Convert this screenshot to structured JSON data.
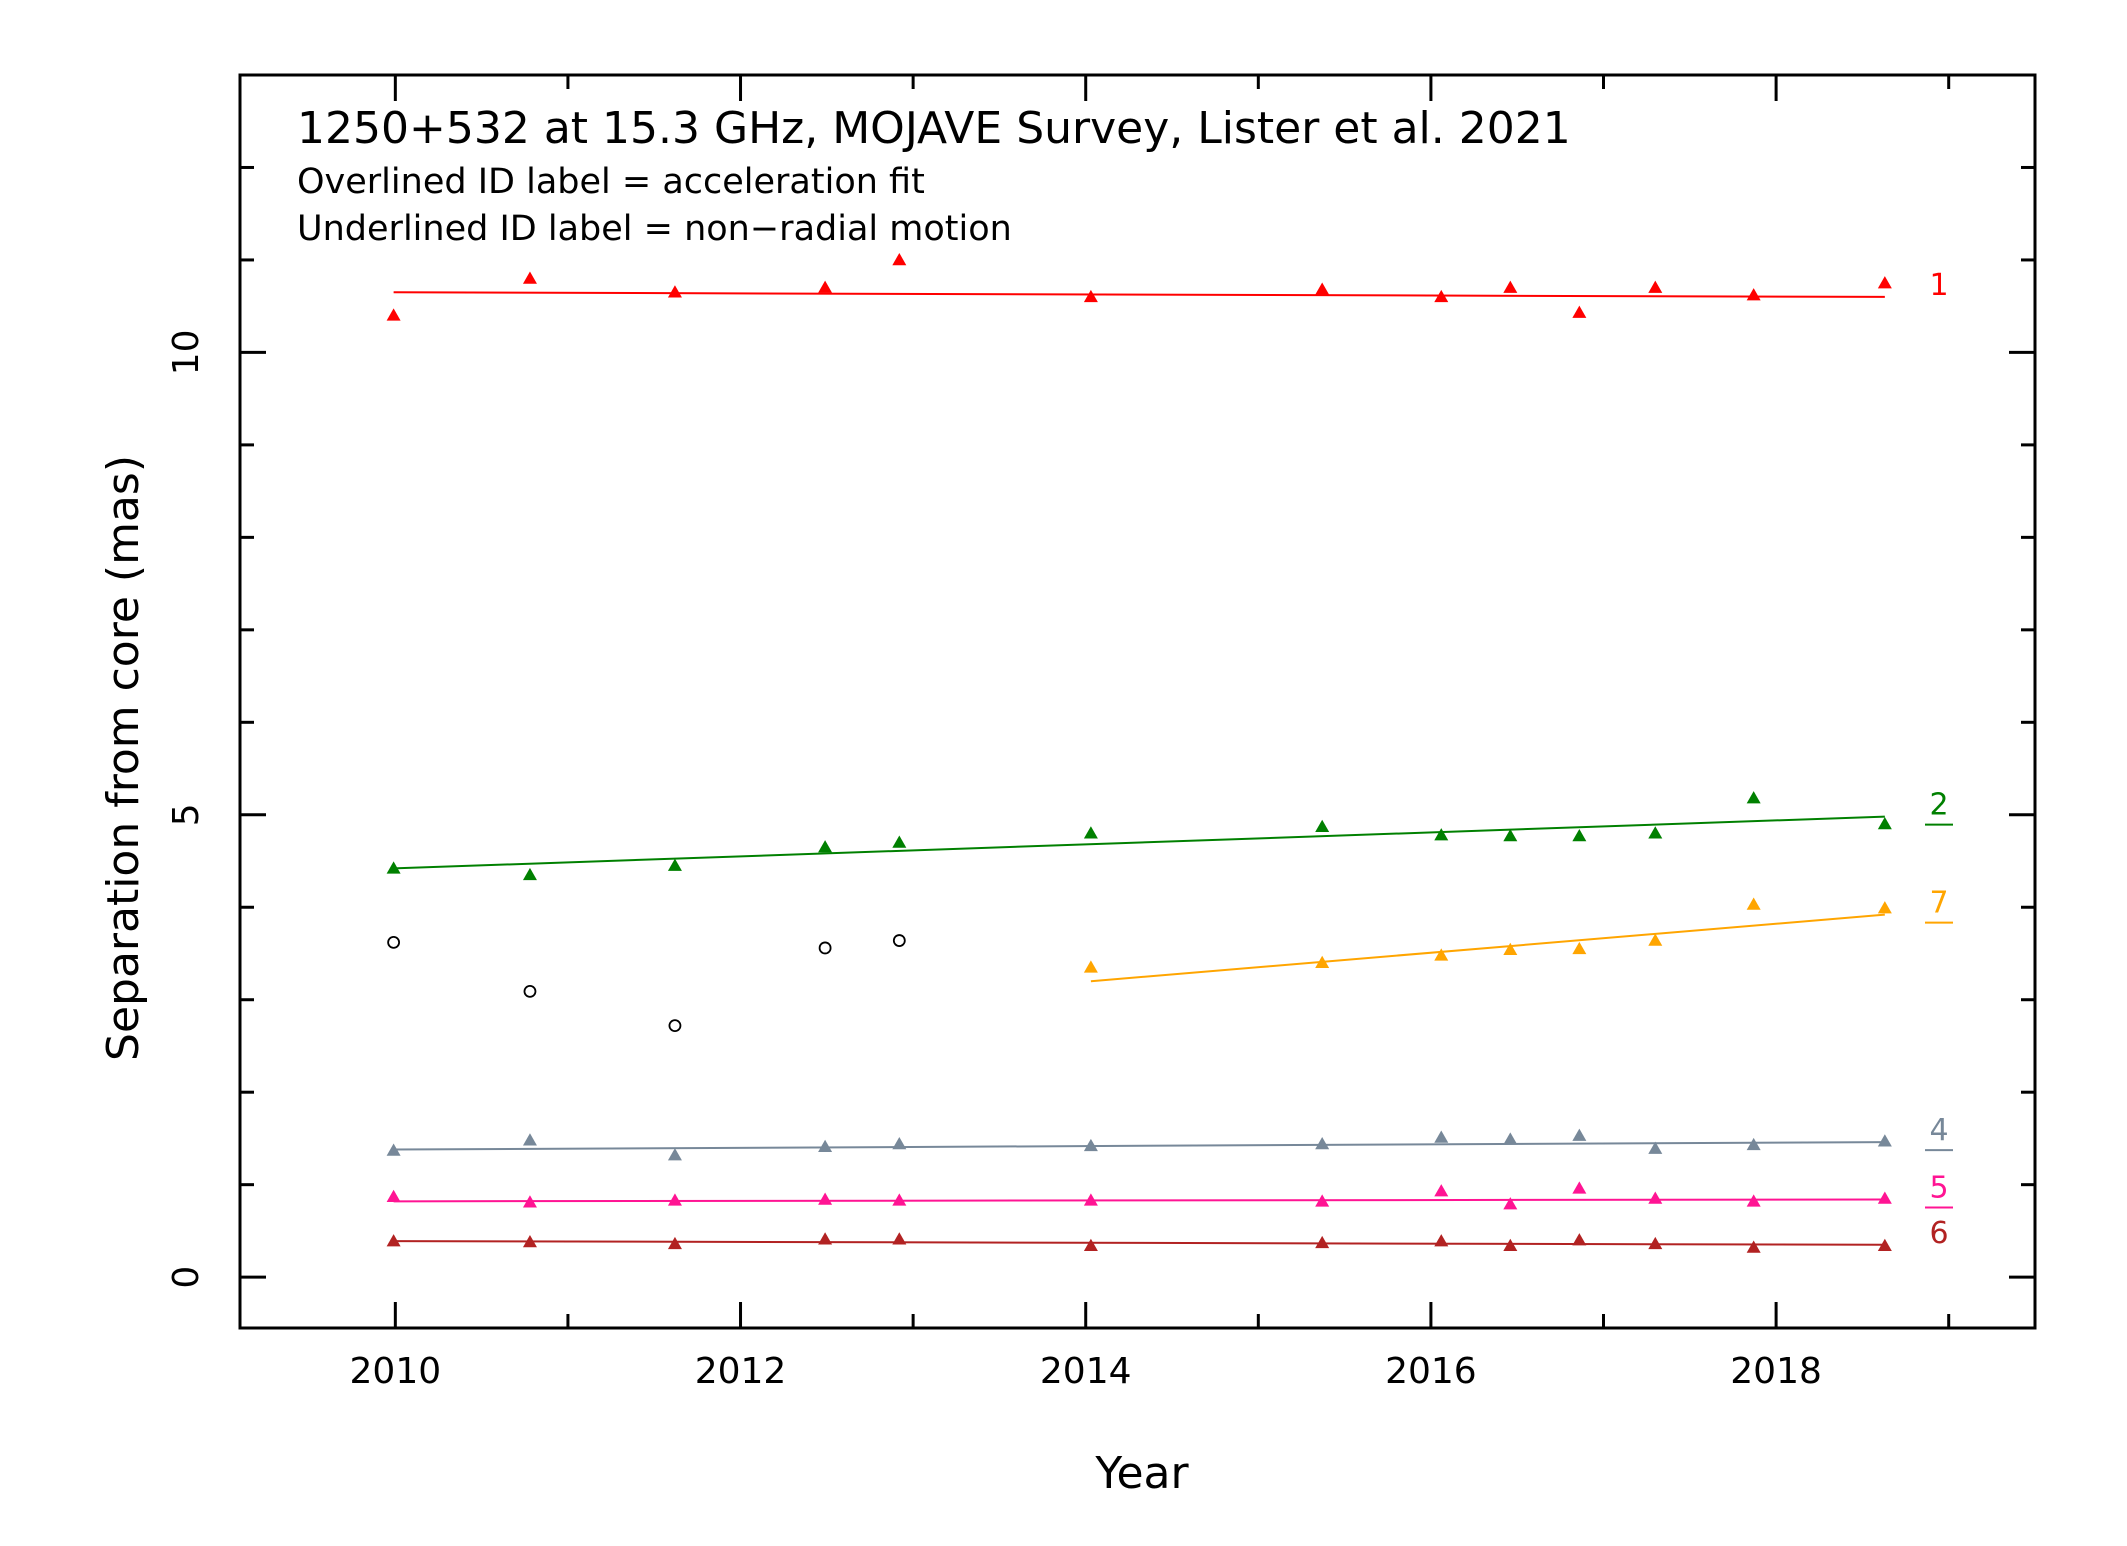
{
  "chart_data": {
    "type": "scatter",
    "title": "1250+532 at 15.3 GHz, MOJAVE Survey, Lister et al. 2021",
    "subtitle_lines": [
      "Overlined ID label = acceleration fit",
      "Underlined ID label = non−radial motion"
    ],
    "xlabel": "Year",
    "ylabel": "Separation from core (mas)",
    "xlim": [
      2009.1,
      2019.5
    ],
    "ylim": [
      -0.55,
      13.0
    ],
    "x_ticks": [
      2010,
      2012,
      2014,
      2016,
      2018
    ],
    "x_tick_labels": [
      "2010",
      "2012",
      "2014",
      "2016",
      "2018"
    ],
    "y_ticks": [
      0,
      5,
      10
    ],
    "y_tick_labels": [
      "0",
      "5",
      "10"
    ],
    "grid": false,
    "components": [
      {
        "id": "1",
        "color": "#ff0000",
        "underline": false,
        "overline": false,
        "x": [
          2009.99,
          2010.78,
          2011.62,
          2012.49,
          2012.92,
          2014.03,
          2015.37,
          2016.06,
          2016.46,
          2016.86,
          2017.3,
          2017.87,
          2018.63
        ],
        "y": [
          10.4,
          10.8,
          10.65,
          10.7,
          11.0,
          10.6,
          10.68,
          10.6,
          10.7,
          10.43,
          10.7,
          10.62,
          10.75
        ],
        "fit": {
          "x": [
            2009.99,
            2018.63
          ],
          "y": [
            10.65,
            10.6
          ]
        }
      },
      {
        "id": "2",
        "color": "#008000",
        "underline": true,
        "overline": false,
        "x": [
          2009.99,
          2010.78,
          2011.62,
          2012.49,
          2012.92,
          2014.03,
          2015.37,
          2016.06,
          2016.46,
          2016.86,
          2017.3,
          2017.87,
          2018.63
        ],
        "y": [
          4.42,
          4.35,
          4.45,
          4.65,
          4.7,
          4.8,
          4.87,
          4.78,
          4.77,
          4.77,
          4.8,
          5.18,
          4.9
        ],
        "fit": {
          "x": [
            2009.99,
            2018.63
          ],
          "y": [
            4.42,
            4.98
          ]
        }
      },
      {
        "id": "7",
        "color": "#ffa500",
        "underline": true,
        "overline": false,
        "x": [
          2014.03,
          2015.37,
          2016.06,
          2016.46,
          2016.86,
          2017.3,
          2017.87,
          2018.63
        ],
        "y": [
          3.35,
          3.4,
          3.48,
          3.54,
          3.55,
          3.64,
          4.03,
          3.99
        ],
        "fit": {
          "x": [
            2014.03,
            2018.63
          ],
          "y": [
            3.2,
            3.92
          ]
        }
      },
      {
        "id": "4",
        "color": "#778899",
        "underline": true,
        "overline": false,
        "x": [
          2009.99,
          2010.78,
          2011.62,
          2012.49,
          2012.92,
          2014.03,
          2015.37,
          2016.06,
          2016.46,
          2016.86,
          2017.3,
          2017.87,
          2018.63
        ],
        "y": [
          1.37,
          1.48,
          1.32,
          1.41,
          1.44,
          1.42,
          1.44,
          1.51,
          1.49,
          1.53,
          1.39,
          1.43,
          1.47
        ],
        "fit": {
          "x": [
            2009.99,
            2018.63
          ],
          "y": [
            1.38,
            1.46
          ]
        }
      },
      {
        "id": "5",
        "color": "#ff1493",
        "underline": true,
        "overline": false,
        "x": [
          2009.99,
          2010.78,
          2011.62,
          2012.49,
          2012.92,
          2014.03,
          2015.37,
          2016.06,
          2016.46,
          2016.86,
          2017.3,
          2017.87,
          2018.63
        ],
        "y": [
          0.87,
          0.81,
          0.83,
          0.84,
          0.83,
          0.83,
          0.82,
          0.93,
          0.79,
          0.96,
          0.85,
          0.82,
          0.85
        ],
        "fit": {
          "x": [
            2009.99,
            2018.63
          ],
          "y": [
            0.82,
            0.84
          ]
        }
      },
      {
        "id": "6",
        "color": "#b22222",
        "underline": false,
        "overline": false,
        "x": [
          2009.99,
          2010.78,
          2011.62,
          2012.49,
          2012.92,
          2014.03,
          2015.37,
          2016.06,
          2016.46,
          2016.86,
          2017.3,
          2017.87,
          2018.63
        ],
        "y": [
          0.39,
          0.38,
          0.36,
          0.41,
          0.41,
          0.34,
          0.37,
          0.39,
          0.34,
          0.4,
          0.36,
          0.32,
          0.34
        ],
        "fit": {
          "x": [
            2009.99,
            2018.63
          ],
          "y": [
            0.39,
            0.35
          ]
        }
      }
    ],
    "unassigned": {
      "color": "#000000",
      "marker": "open-circle",
      "x": [
        2009.99,
        2010.78,
        2011.62,
        2012.49,
        2012.92
      ],
      "y": [
        3.62,
        3.09,
        2.72,
        3.56,
        3.64
      ]
    }
  }
}
